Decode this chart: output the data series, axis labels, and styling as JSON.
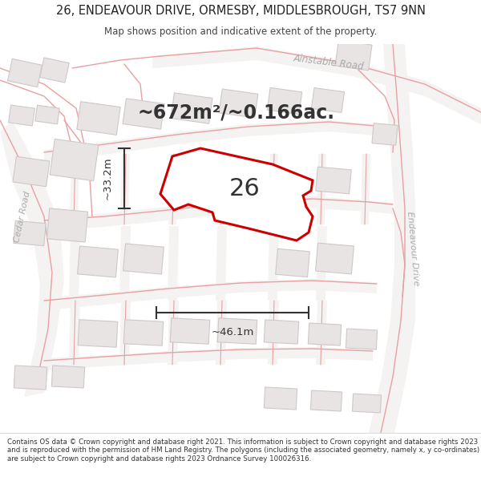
{
  "title_line1": "26, ENDEAVOUR DRIVE, ORMESBY, MIDDLESBROUGH, TS7 9NN",
  "title_line2": "Map shows position and indicative extent of the property.",
  "area_text": "~672m²/~0.166ac.",
  "plot_number": "26",
  "dim_width": "~46.1m",
  "dim_height": "~33.2m",
  "footer_text": "Contains OS data © Crown copyright and database right 2021. This information is subject to Crown copyright and database rights 2023 and is reproduced with the permission of HM Land Registry. The polygons (including the associated geometry, namely x, y co-ordinates) are subject to Crown copyright and database rights 2023 Ordnance Survey 100026316.",
  "road_color": "#f0b0b0",
  "road_outline": "#e8a0a0",
  "building_fill": "#e8e4e4",
  "building_edge": "#d0c8c8",
  "plot_color": "#cc0000",
  "plot_fill": "none",
  "map_bg": "#faf8f8",
  "title_bg": "#ffffff",
  "footer_bg": "#ffffff",
  "dim_color": "#333333",
  "label_color": "#aaaaaa"
}
